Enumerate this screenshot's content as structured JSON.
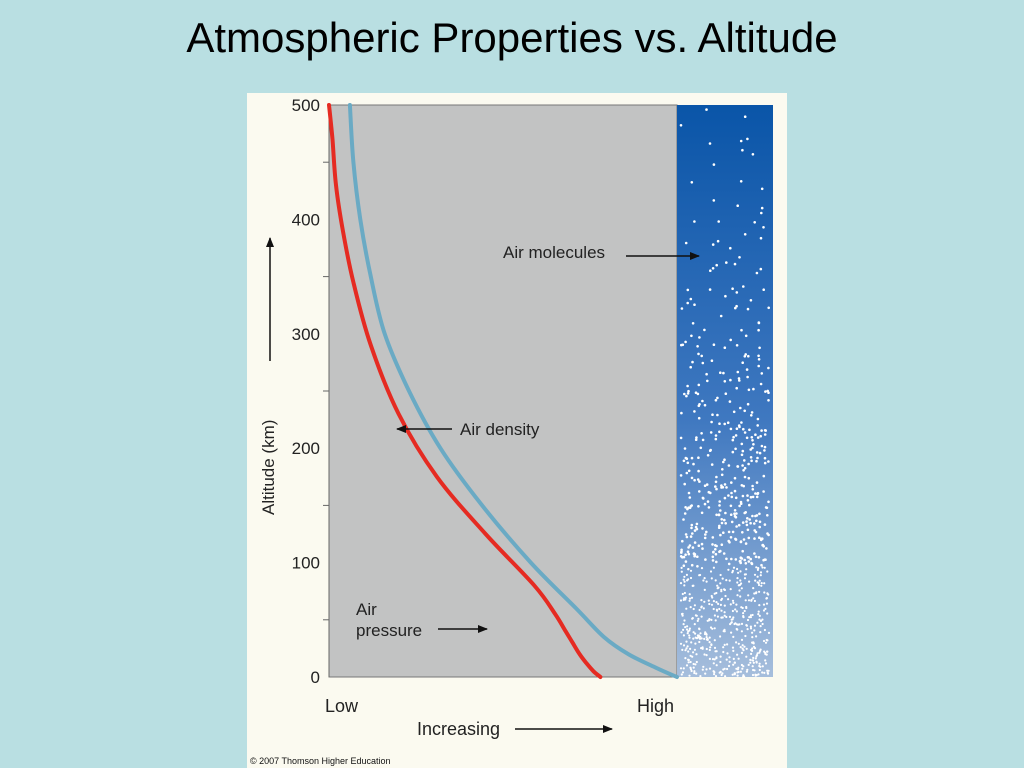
{
  "slide": {
    "title": "Atmospheric Properties vs. Altitude"
  },
  "chart_data": {
    "type": "line",
    "title": "",
    "ylabel": "Altitude (km)",
    "xlabel": "Increasing",
    "ylim": [
      0,
      500
    ],
    "yticks": [
      "0",
      "100",
      "200",
      "300",
      "400",
      "500"
    ],
    "ytick_values": [
      0,
      100,
      200,
      300,
      400,
      500
    ],
    "x_end_labels": [
      "Low",
      "High"
    ],
    "xlim": [
      0,
      1
    ],
    "series": [
      {
        "name": "Air pressure",
        "color": "#e52b22",
        "x": [
          0.0,
          0.01,
          0.02,
          0.04,
          0.07,
          0.12,
          0.2,
          0.31,
          0.45,
          0.59,
          0.65,
          0.68,
          0.7,
          0.72,
          0.74,
          0.76,
          0.78
        ],
        "y": [
          500,
          470,
          430,
          390,
          345,
          290,
          230,
          175,
          125,
          80,
          55,
          40,
          30,
          20,
          12,
          5,
          0
        ]
      },
      {
        "name": "Air density",
        "color": "#6aaac4",
        "x": [
          0.06,
          0.07,
          0.09,
          0.12,
          0.16,
          0.23,
          0.32,
          0.44,
          0.58,
          0.71,
          0.79,
          0.86,
          0.94,
          1.0
        ],
        "y": [
          500,
          450,
          400,
          350,
          300,
          250,
          200,
          150,
          100,
          60,
          35,
          20,
          8,
          0
        ]
      }
    ],
    "annotations": [
      "Air molecules",
      "Air density",
      "Air pressure"
    ],
    "legend": "none"
  },
  "footer": {
    "copyright": "© 2007 Thomson Higher Education"
  },
  "colors": {
    "plot_bg": "#c2c3c3",
    "panel_top": "#0a55a8",
    "panel_bottom": "#a6bedc",
    "slide_bg": "#b9dfe2"
  },
  "molecule_density": "increasing downward"
}
